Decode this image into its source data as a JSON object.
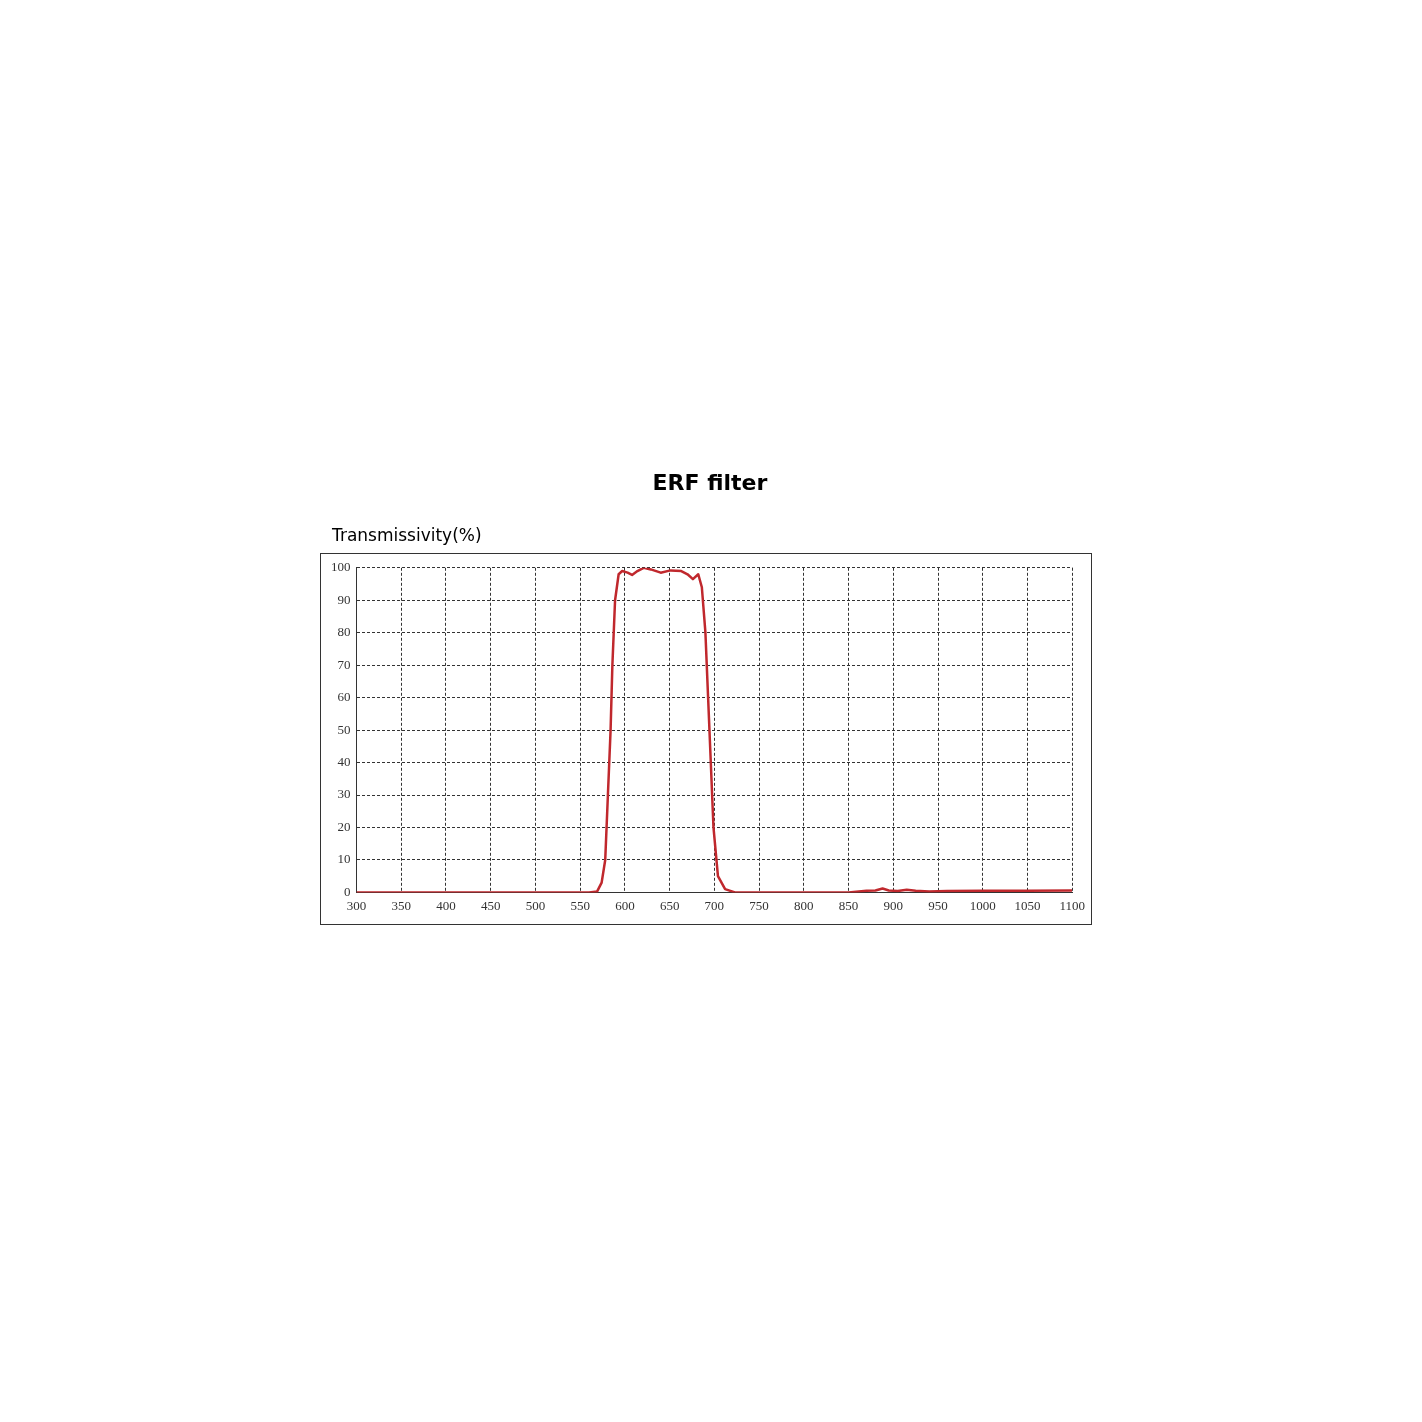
{
  "chart_data": {
    "type": "line",
    "title": "ERF filter",
    "ylabel": "Transmissivity(%)",
    "x": [
      300,
      500,
      560,
      569,
      574,
      578,
      581,
      584,
      586,
      589,
      593,
      597,
      603,
      608,
      614,
      621,
      629,
      640,
      651,
      663,
      670,
      676,
      682,
      686,
      690,
      693,
      696,
      699,
      704,
      712,
      723,
      760,
      850,
      870,
      880,
      888,
      895,
      905,
      915,
      925,
      940,
      960,
      1000,
      1050,
      1100
    ],
    "series": [
      {
        "color": "#c0282d",
        "values": [
          0,
          0,
          0,
          0.3,
          3,
          10,
          30,
          50,
          70,
          90,
          98,
          99,
          98.5,
          97.8,
          99,
          100,
          99.5,
          98.5,
          99.2,
          99,
          98,
          96.5,
          98,
          94,
          80,
          60,
          40,
          20,
          5,
          1,
          0,
          0,
          0,
          0.5,
          0.6,
          1.2,
          0.6,
          0.4,
          0.8,
          0.5,
          0.3,
          0.4,
          0.5,
          0.5,
          0.6
        ]
      }
    ],
    "xlim": [
      300,
      1100
    ],
    "xticks": [
      300,
      350,
      400,
      450,
      500,
      550,
      600,
      650,
      700,
      750,
      800,
      850,
      900,
      950,
      1000,
      1050,
      1100
    ],
    "ylim": [
      0,
      100
    ],
    "yticks": [
      0,
      10,
      20,
      30,
      40,
      50,
      60,
      70,
      80,
      90,
      100
    ],
    "grid": true,
    "legend": false,
    "marker": "none",
    "line_style": "solid"
  }
}
